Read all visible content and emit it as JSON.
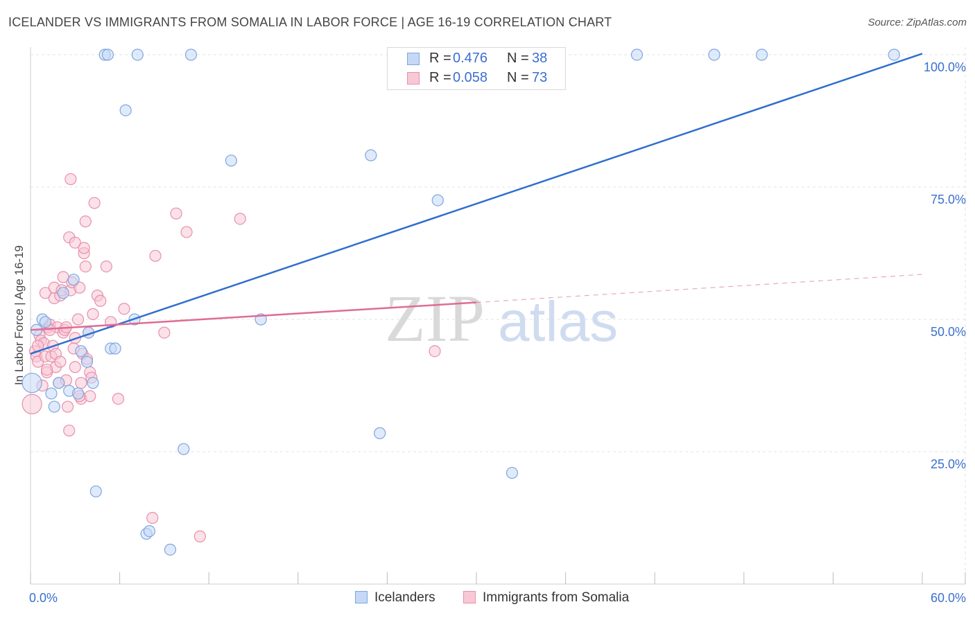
{
  "title": "ICELANDER VS IMMIGRANTS FROM SOMALIA IN LABOR FORCE | AGE 16-19 CORRELATION CHART",
  "source": "Source: ZipAtlas.com",
  "watermark": {
    "zip": "ZIP",
    "atlas": "atlas"
  },
  "colors": {
    "blue_fill": "#c5d8f5",
    "blue_stroke": "#7fa6e0",
    "blue_line": "#2f6fcc",
    "pink_fill": "#f8c8d6",
    "pink_stroke": "#e88fac",
    "pink_line": "#e06b95",
    "grid": "#e3e3e3",
    "tick_label": "#3a6fcf"
  },
  "legend_top": [
    {
      "r_label": "R =",
      "r_value": "0.476",
      "n_label": "N =",
      "n_value": "38"
    },
    {
      "r_label": "R =",
      "r_value": "0.058",
      "n_label": "N =",
      "n_value": "73"
    }
  ],
  "legend_bottom": [
    "Icelanders",
    "Immigrants from Somalia"
  ],
  "chart_data": {
    "type": "scatter",
    "title": "ICELANDER VS IMMIGRANTS FROM SOMALIA IN LABOR FORCE | AGE 16-19 CORRELATION CHART",
    "xlabel": "",
    "ylabel": "In Labor Force | Age 16-19",
    "xlim": [
      0,
      60
    ],
    "ylim": [
      0,
      100
    ],
    "x_tick_labels": [
      "0.0%",
      "60.0%"
    ],
    "y_ticks": [
      25,
      50,
      75,
      100
    ],
    "y_tick_labels": [
      "25.0%",
      "50.0%",
      "75.0%",
      "100.0%"
    ],
    "grid": true,
    "series": [
      {
        "name": "Icelanders",
        "r": 0.476,
        "n": 38,
        "trend": {
          "x": [
            0,
            60
          ],
          "y": [
            43.5,
            100.2
          ]
        },
        "points": [
          {
            "x": 0.1,
            "y": 38,
            "big": true
          },
          {
            "x": 0.4,
            "y": 48
          },
          {
            "x": 0.8,
            "y": 50
          },
          {
            "x": 1.0,
            "y": 49.5
          },
          {
            "x": 1.4,
            "y": 36
          },
          {
            "x": 1.6,
            "y": 33.5
          },
          {
            "x": 1.9,
            "y": 38
          },
          {
            "x": 2.2,
            "y": 55
          },
          {
            "x": 2.6,
            "y": 36.5
          },
          {
            "x": 2.9,
            "y": 57.5
          },
          {
            "x": 3.2,
            "y": 36
          },
          {
            "x": 3.4,
            "y": 44
          },
          {
            "x": 3.8,
            "y": 42
          },
          {
            "x": 3.9,
            "y": 47.5
          },
          {
            "x": 4.2,
            "y": 38
          },
          {
            "x": 4.4,
            "y": 17.5
          },
          {
            "x": 5.0,
            "y": 100
          },
          {
            "x": 5.2,
            "y": 100
          },
          {
            "x": 5.4,
            "y": 44.5
          },
          {
            "x": 5.7,
            "y": 44.5
          },
          {
            "x": 6.4,
            "y": 89.5
          },
          {
            "x": 7.0,
            "y": 50
          },
          {
            "x": 7.2,
            "y": 100
          },
          {
            "x": 7.8,
            "y": 9.5
          },
          {
            "x": 8.0,
            "y": 10
          },
          {
            "x": 9.4,
            "y": 6.5
          },
          {
            "x": 10.3,
            "y": 25.5
          },
          {
            "x": 10.8,
            "y": 100
          },
          {
            "x": 13.5,
            "y": 80
          },
          {
            "x": 15.5,
            "y": 50
          },
          {
            "x": 22.9,
            "y": 81
          },
          {
            "x": 23.5,
            "y": 28.5
          },
          {
            "x": 27.4,
            "y": 72.5
          },
          {
            "x": 32.4,
            "y": 21
          },
          {
            "x": 40.8,
            "y": 100
          },
          {
            "x": 46.0,
            "y": 100
          },
          {
            "x": 49.2,
            "y": 100
          },
          {
            "x": 58.1,
            "y": 100
          }
        ]
      },
      {
        "name": "Immigrants from Somalia",
        "r": 0.058,
        "n": 73,
        "trend": {
          "x": [
            0,
            30
          ],
          "y": [
            48,
            53.2
          ]
        },
        "trend_dashed": {
          "x": [
            30,
            60
          ],
          "y": [
            53.2,
            58.5
          ]
        },
        "points": [
          {
            "x": 0.1,
            "y": 34,
            "big": true
          },
          {
            "x": 0.3,
            "y": 44
          },
          {
            "x": 0.4,
            "y": 43
          },
          {
            "x": 0.5,
            "y": 42
          },
          {
            "x": 0.6,
            "y": 47
          },
          {
            "x": 0.7,
            "y": 46
          },
          {
            "x": 0.8,
            "y": 37.5
          },
          {
            "x": 0.9,
            "y": 45.5
          },
          {
            "x": 1.0,
            "y": 55
          },
          {
            "x": 1.0,
            "y": 43
          },
          {
            "x": 1.1,
            "y": 40
          },
          {
            "x": 1.2,
            "y": 48.5
          },
          {
            "x": 1.3,
            "y": 49
          },
          {
            "x": 1.4,
            "y": 43
          },
          {
            "x": 1.5,
            "y": 45
          },
          {
            "x": 1.6,
            "y": 54
          },
          {
            "x": 1.6,
            "y": 56
          },
          {
            "x": 1.7,
            "y": 41
          },
          {
            "x": 1.7,
            "y": 43.5
          },
          {
            "x": 1.8,
            "y": 48.5
          },
          {
            "x": 1.9,
            "y": 38
          },
          {
            "x": 2.0,
            "y": 42
          },
          {
            "x": 2.0,
            "y": 54.5
          },
          {
            "x": 2.1,
            "y": 55.5
          },
          {
            "x": 2.2,
            "y": 58
          },
          {
            "x": 2.2,
            "y": 47.5
          },
          {
            "x": 2.3,
            "y": 48
          },
          {
            "x": 2.4,
            "y": 38.5
          },
          {
            "x": 2.5,
            "y": 33.5
          },
          {
            "x": 2.6,
            "y": 29
          },
          {
            "x": 2.6,
            "y": 65.5
          },
          {
            "x": 2.7,
            "y": 55.5
          },
          {
            "x": 2.7,
            "y": 76.5
          },
          {
            "x": 2.8,
            "y": 57
          },
          {
            "x": 3.0,
            "y": 41
          },
          {
            "x": 3.0,
            "y": 46.5
          },
          {
            "x": 3.0,
            "y": 64.5
          },
          {
            "x": 3.2,
            "y": 50
          },
          {
            "x": 3.3,
            "y": 56
          },
          {
            "x": 3.4,
            "y": 35
          },
          {
            "x": 3.4,
            "y": 38
          },
          {
            "x": 3.5,
            "y": 43.5
          },
          {
            "x": 3.6,
            "y": 62.5
          },
          {
            "x": 3.6,
            "y": 63.5
          },
          {
            "x": 3.7,
            "y": 60
          },
          {
            "x": 3.7,
            "y": 68.5
          },
          {
            "x": 3.8,
            "y": 42.5
          },
          {
            "x": 3.9,
            "y": 47.5
          },
          {
            "x": 4.0,
            "y": 35.5
          },
          {
            "x": 4.0,
            "y": 40
          },
          {
            "x": 4.1,
            "y": 39
          },
          {
            "x": 4.2,
            "y": 51
          },
          {
            "x": 4.3,
            "y": 72
          },
          {
            "x": 4.5,
            "y": 54.5
          },
          {
            "x": 4.7,
            "y": 53.5
          },
          {
            "x": 5.1,
            "y": 60
          },
          {
            "x": 5.4,
            "y": 49.5
          },
          {
            "x": 5.9,
            "y": 35
          },
          {
            "x": 6.3,
            "y": 52
          },
          {
            "x": 8.2,
            "y": 12.5
          },
          {
            "x": 8.4,
            "y": 62
          },
          {
            "x": 9.0,
            "y": 47.5
          },
          {
            "x": 9.8,
            "y": 70
          },
          {
            "x": 10.5,
            "y": 66.5
          },
          {
            "x": 11.4,
            "y": 9
          },
          {
            "x": 14.1,
            "y": 69
          },
          {
            "x": 27.2,
            "y": 44
          },
          {
            "x": 1.3,
            "y": 48
          },
          {
            "x": 2.4,
            "y": 48.5
          },
          {
            "x": 0.5,
            "y": 45
          },
          {
            "x": 1.1,
            "y": 40.5
          },
          {
            "x": 3.3,
            "y": 35.5
          },
          {
            "x": 2.9,
            "y": 44.5
          }
        ]
      }
    ]
  }
}
